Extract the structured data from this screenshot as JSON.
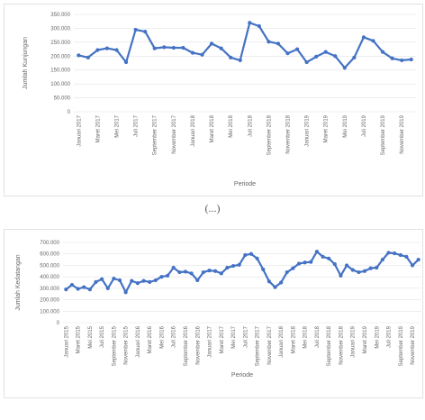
{
  "caption_label": "(...)",
  "chart_data": [
    {
      "type": "line",
      "xlabel": "Periode",
      "ylabel": "Jumlah Kunjungan",
      "ylim": [
        0,
        350000
      ],
      "grid": true,
      "yticks": [
        "0",
        "50.000",
        "100.000",
        "150.000",
        "200.000",
        "250.000",
        "300.000",
        "350.000"
      ],
      "color": "#4472c4",
      "categories": [
        "Januari 2017",
        "Februari 2017",
        "Maret 2017",
        "April 2017",
        "Mei 2017",
        "Juni 2017",
        "Juli 2017",
        "Agustus 2017",
        "September 2017",
        "Oktober 2017",
        "November 2017",
        "Desember 2017",
        "Januari 2018",
        "Februari 2018",
        "Maret 2018",
        "April 2018",
        "Mei 2018",
        "Juni 2018",
        "Juli 2018",
        "Agustus 2018",
        "September 2018",
        "Oktober 2018",
        "November 2018",
        "Desember 2018",
        "Januari 2019",
        "Februari 2019",
        "Maret 2019",
        "April 2019",
        "Mei 2019",
        "Juni 2019",
        "Juli 2019",
        "Agustus 2019",
        "September 2019",
        "Oktober 2019",
        "November 2019",
        "Desember 2019"
      ],
      "tick_labels": [
        "Januari 2017",
        "Maret 2017",
        "Mei 2017",
        "Juli 2017",
        "September 2017",
        "November 2017",
        "Januari 2018",
        "Maret 2018",
        "Mei 2018",
        "Juli 2018",
        "September 2018",
        "November 2018",
        "Januari 2019",
        "Maret 2019",
        "Mei 2019",
        "Juli 2019",
        "September 2019",
        "November 2019"
      ],
      "values": [
        203000,
        195000,
        222000,
        228000,
        222000,
        178000,
        295000,
        288000,
        228000,
        232000,
        230000,
        230000,
        212000,
        205000,
        245000,
        228000,
        195000,
        185000,
        320000,
        308000,
        252000,
        245000,
        210000,
        225000,
        178000,
        198000,
        215000,
        200000,
        158000,
        195000,
        268000,
        255000,
        215000,
        192000,
        185000,
        188000
      ]
    },
    {
      "type": "line",
      "xlabel": "Periode",
      "ylabel": "Jumlah Kedatangan",
      "ylim": [
        0,
        700000
      ],
      "grid": true,
      "yticks": [
        "0",
        "100.000",
        "200.000",
        "300.000",
        "400.000",
        "500.000",
        "600.000",
        "700.000"
      ],
      "color": "#4472c4",
      "categories": [
        "Januari 2015",
        "Februari 2015",
        "Maret 2015",
        "April 2015",
        "Mei 2015",
        "Juni 2015",
        "Juli 2015",
        "Agustus 2015",
        "September 2015",
        "Oktober 2015",
        "November 2015",
        "Desember 2015",
        "Januari 2016",
        "Februari 2016",
        "Maret 2016",
        "April 2016",
        "Mei 2016",
        "Juni 2016",
        "Juli 2016",
        "Agustus 2016",
        "September 2016",
        "Oktober 2016",
        "November 2016",
        "Desember 2016",
        "Januari 2017",
        "Februari 2017",
        "Maret 2017",
        "April 2017",
        "Mei 2017",
        "Juni 2017",
        "Juli 2017",
        "Agustus 2017",
        "September 2017",
        "Oktober 2017",
        "November 2017",
        "Desember 2017",
        "Januari 2018",
        "Februari 2018",
        "Maret 2018",
        "April 2018",
        "Mei 2018",
        "Juni 2018",
        "Juli 2018",
        "Agustus 2018",
        "September 2018",
        "Oktober 2018",
        "November 2018",
        "Desember 2018",
        "Januari 2019",
        "Februari 2019",
        "Maret 2019",
        "April 2019",
        "Mei 2019",
        "Juni 2019",
        "Juli 2019",
        "Agustus 2019",
        "September 2019",
        "Oktober 2019",
        "November 2019",
        "Desember 2019"
      ],
      "tick_labels": [
        "Januari 2015",
        "Maret 2015",
        "Mei 2015",
        "Juli 2015",
        "September 2015",
        "November 2015",
        "Januari 2016",
        "Maret 2016",
        "Mei 2016",
        "Juli 2016",
        "September 2016",
        "November 2016",
        "Januari 2017",
        "Maret 2017",
        "Mei 2017",
        "Juli 2017",
        "September 2017",
        "November 2017",
        "Januari 2018",
        "Maret 2018",
        "Mei 2018",
        "Juli 2018",
        "September 2018",
        "November 2018",
        "Januari 2019",
        "Maret 2019",
        "Mei 2019",
        "Juli 2019",
        "September 2019",
        "November 2019"
      ],
      "values": [
        290000,
        330000,
        295000,
        310000,
        290000,
        355000,
        380000,
        300000,
        385000,
        370000,
        265000,
        365000,
        345000,
        365000,
        355000,
        370000,
        400000,
        410000,
        480000,
        440000,
        445000,
        430000,
        370000,
        440000,
        455000,
        450000,
        430000,
        480000,
        495000,
        505000,
        590000,
        600000,
        560000,
        465000,
        360000,
        310000,
        350000,
        440000,
        475000,
        515000,
        525000,
        530000,
        620000,
        575000,
        560000,
        510000,
        410000,
        500000,
        460000,
        440000,
        450000,
        475000,
        480000,
        550000,
        610000,
        605000,
        590000,
        575000,
        500000,
        550000
      ]
    }
  ]
}
